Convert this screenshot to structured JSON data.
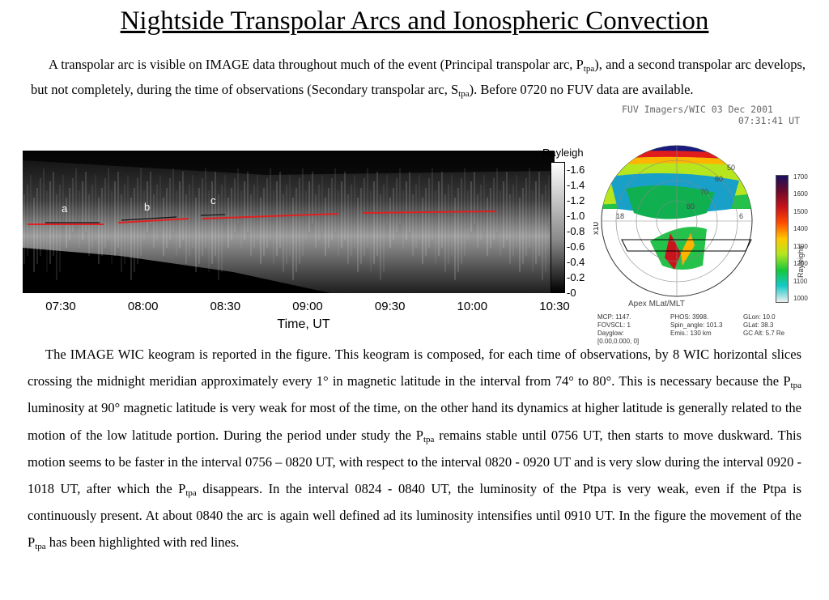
{
  "title": "Nightside Transpolar Arcs and  Ionospheric Convection",
  "para1": {
    "a": "A transpolar arc is visible on IMAGE data throughout much of the event (Principal transpolar arc, P",
    "sub1": "tpa",
    "b": "), and a second transpolar arc develops, but not completely, during the time of observations (Secondary transpolar arc, S",
    "sub2": "tpa",
    "c": "). Before 0720 no FUV data are available."
  },
  "para2": {
    "a": "The IMAGE WIC keogram is reported in the figure. This keogram is composed, for each time of observations,  by 8 WIC horizontal slices crossing the midnight meridian approximately every 1° in magnetic latitude in the interval from 74° to 80°. This is necessary because the P",
    "s1": "tpa",
    "b": " luminosity at  90° magnetic latitude is very weak for most of the time, on the other hand its dynamics at higher latitude is generally related to the motion of the low latitude portion. During the period under study the P",
    "s2": "tpa",
    "c": " remains stable until 0756 UT, then starts to move duskward. This motion seems to be faster in the interval 0756 – 0820 UT,  with respect to the interval 0820 - 0920 UT and is very slow during the interval 0920 - 1018 UT, after which the P",
    "s3": "tpa",
    "d": " disappears. In the interval 0824 - 0840 UT, the luminosity of the Ptpa is very weak, even if the Ptpa is continuously present. At about 0840 the arc is again well defined ad its luminosity intensifies until 0910 UT. In the figure the movement of the P",
    "s4": "tpa",
    "e": " has been highlighted with red lines."
  },
  "keogram": {
    "colorbar_title": "Rayleigh",
    "colorbar_ticks": [
      "1.6",
      "1.4",
      "1.2",
      "1.0",
      "0.8",
      "0.6",
      "0.4",
      "0.2",
      "0"
    ],
    "time_ticks": [
      "07:30",
      "08:00",
      "08:30",
      "09:00",
      "09:30",
      "10:00",
      "10:30"
    ],
    "time_label": "Time, UT",
    "segment_labels": [
      "a",
      "b",
      "c"
    ],
    "colors": {
      "background": "#1a1a1a",
      "arc": "#e02020"
    }
  },
  "polar": {
    "header_line1": "FUV Imagers/WIC    03 Dec 2001",
    "header_line2": "07:31:41 UT",
    "scale_label": "x10",
    "lat_labels": [
      "50",
      "60",
      "70",
      "80"
    ],
    "mlt_labels": [
      "18",
      "6"
    ],
    "apex_label": "Apex MLat/MLT",
    "colorbar_label": "Rayleighs",
    "colorbar_ticks": [
      "1700",
      "1600",
      "1500",
      "1400",
      "1300",
      "1200",
      "1100",
      "1000"
    ],
    "info": [
      [
        "MCP:  1147.",
        "PHOS:  3998.",
        "GLon:  10.0"
      ],
      [
        "FOVSCL: 1",
        "Spin_angle: 101.3",
        "GLat:  38.3"
      ],
      [
        "Dayglow:",
        "Emis.: 130 km",
        "GC Alt:  5.7 Re"
      ],
      [
        "[0.00,0.000,  0]",
        "",
        ""
      ]
    ]
  }
}
